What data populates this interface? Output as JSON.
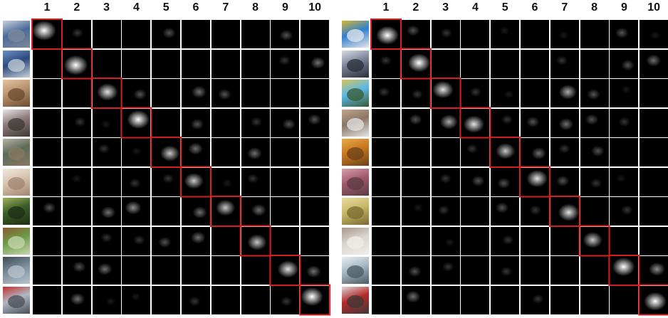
{
  "column_labels": [
    "1",
    "2",
    "3",
    "4",
    "5",
    "6",
    "7",
    "8",
    "9",
    "10"
  ],
  "panels": [
    {
      "rows": [
        {
          "thumb": "airplane-photo",
          "colors": [
            "#4a6a9a",
            "#c9d2de",
            "#7d8a99"
          ]
        },
        {
          "thumb": "car-photo",
          "colors": [
            "#2c4a7c",
            "#6b8fc4",
            "#c8d0d8"
          ]
        },
        {
          "thumb": "bird-photo",
          "colors": [
            "#b8926c",
            "#e2c4a2",
            "#6a4a32"
          ]
        },
        {
          "thumb": "cat-photo",
          "colors": [
            "#8b7a78",
            "#e8e2e6",
            "#3c3836"
          ]
        },
        {
          "thumb": "deer-photo",
          "colors": [
            "#5a6b58",
            "#b9b3a2",
            "#8a7862"
          ]
        },
        {
          "thumb": "dog-photo",
          "colors": [
            "#d7c3ad",
            "#f2e8de",
            "#a08670"
          ]
        },
        {
          "thumb": "frog-photo",
          "colors": [
            "#3a5c2a",
            "#9fb25a",
            "#1f2e14"
          ]
        },
        {
          "thumb": "horse-photo",
          "colors": [
            "#6d9a48",
            "#8b5a32",
            "#c8d6b0"
          ]
        },
        {
          "thumb": "ship-photo",
          "colors": [
            "#7a8c9a",
            "#3d4a52",
            "#b8c4cc"
          ]
        },
        {
          "thumb": "truck-photo",
          "colors": [
            "#b0b8c4",
            "#c4302c",
            "#4a4e56"
          ]
        }
      ]
    },
    {
      "rows": [
        {
          "thumb": "airplane-photo",
          "colors": [
            "#2f7fd0",
            "#d8b832",
            "#e8e8e8"
          ]
        },
        {
          "thumb": "car-photo",
          "colors": [
            "#7a8296",
            "#d8dce4",
            "#2a2e38"
          ]
        },
        {
          "thumb": "bird-photo",
          "colors": [
            "#5ab8e8",
            "#d8c45a",
            "#3a5a32"
          ]
        },
        {
          "thumb": "cat-photo",
          "colors": [
            "#8a7666",
            "#c2a688",
            "#e4e4e4"
          ]
        },
        {
          "thumb": "deer-photo",
          "colors": [
            "#c8781e",
            "#e8a848",
            "#6a4218"
          ]
        },
        {
          "thumb": "dog-photo",
          "colors": [
            "#a05a6a",
            "#d6a0b0",
            "#5a3a44"
          ]
        },
        {
          "thumb": "frog-photo",
          "colors": [
            "#c8b868",
            "#e8dca0",
            "#7a6a32"
          ]
        },
        {
          "thumb": "horse-photo",
          "colors": [
            "#d8d4d0",
            "#a89888",
            "#f0eeea"
          ]
        },
        {
          "thumb": "ship-photo",
          "colors": [
            "#a8b8c4",
            "#e8eef2",
            "#4a5a62"
          ]
        },
        {
          "thumb": "truck-photo",
          "colors": [
            "#b82828",
            "#d8d8d8",
            "#3a3a3a"
          ]
        }
      ]
    }
  ],
  "blobs": [
    [
      [
        10,
        2,
        0,
        0,
        3,
        0,
        0,
        0,
        3,
        0
      ],
      [
        0,
        10,
        0,
        0,
        0,
        0,
        0,
        0,
        2,
        4
      ],
      [
        0,
        0,
        8,
        3,
        0,
        4,
        3,
        0,
        0,
        0
      ],
      [
        0,
        2,
        1,
        9,
        0,
        3,
        0,
        2,
        3,
        3
      ],
      [
        0,
        0,
        2,
        1,
        7,
        4,
        0,
        4,
        0,
        0
      ],
      [
        0,
        1,
        0,
        2,
        2,
        7,
        1,
        2,
        0,
        0
      ],
      [
        3,
        0,
        4,
        5,
        0,
        4,
        7,
        4,
        0,
        0
      ],
      [
        0,
        0,
        2,
        2,
        3,
        4,
        0,
        7,
        0,
        0
      ],
      [
        0,
        3,
        4,
        0,
        0,
        0,
        0,
        0,
        8,
        4
      ],
      [
        0,
        4,
        1,
        1,
        0,
        2,
        0,
        0,
        2,
        9
      ]
    ],
    [
      [
        9,
        3,
        2,
        0,
        1,
        0,
        1,
        0,
        3,
        1
      ],
      [
        2,
        9,
        0,
        0,
        0,
        0,
        2,
        0,
        3,
        4
      ],
      [
        2,
        2,
        8,
        2,
        1,
        0,
        6,
        3,
        1,
        0
      ],
      [
        0,
        3,
        6,
        8,
        2,
        3,
        4,
        3,
        2,
        0
      ],
      [
        0,
        0,
        0,
        2,
        7,
        4,
        2,
        3,
        0,
        0
      ],
      [
        0,
        0,
        2,
        3,
        3,
        8,
        3,
        2,
        1,
        0
      ],
      [
        0,
        1,
        2,
        0,
        3,
        2,
        8,
        0,
        2,
        0
      ],
      [
        0,
        0,
        1,
        0,
        2,
        0,
        0,
        7,
        0,
        0
      ],
      [
        0,
        3,
        2,
        0,
        2,
        0,
        0,
        0,
        9,
        5
      ],
      [
        0,
        4,
        0,
        0,
        0,
        2,
        0,
        0,
        0,
        9
      ]
    ]
  ],
  "highlight_color": "#d42020"
}
